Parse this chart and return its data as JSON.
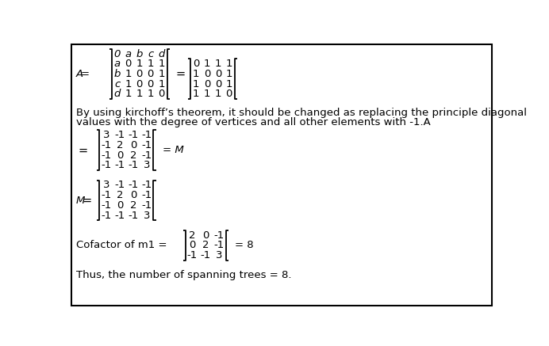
{
  "bg_color": "#ffffff",
  "border_color": "#000000",
  "text_color": "#000000",
  "figsize": [
    6.92,
    4.37
  ],
  "dpi": 100,
  "matrix_A_labeled": [
    [
      "0",
      "a",
      "b",
      "c",
      "d"
    ],
    [
      "a",
      "0",
      "1",
      "1",
      "1"
    ],
    [
      "b",
      "1",
      "0",
      "0",
      "1"
    ],
    [
      "c",
      "1",
      "0",
      "0",
      "1"
    ],
    [
      "d",
      "1",
      "1",
      "1",
      "0"
    ]
  ],
  "matrix_A": [
    [
      "0",
      "1",
      "1",
      "1"
    ],
    [
      "1",
      "0",
      "0",
      "1"
    ],
    [
      "1",
      "0",
      "0",
      "1"
    ],
    [
      "1",
      "1",
      "1",
      "0"
    ]
  ],
  "matrix_M": [
    [
      "3",
      "-1",
      "-1",
      "-1"
    ],
    [
      "-1",
      "2",
      "0",
      "-1"
    ],
    [
      "-1",
      "0",
      "2",
      "-1"
    ],
    [
      "-1",
      "-1",
      "-1",
      "3"
    ]
  ],
  "matrix_cofactor": [
    [
      "2",
      "0",
      "-1"
    ],
    [
      "0",
      "2",
      "-1"
    ],
    [
      "-1",
      "-1",
      "3"
    ]
  ],
  "explanation_line1": "By using kirchoff’s theorem, it should be changed as replacing the principle diagonal",
  "explanation_line2": "values with the degree of vertices and all other elements with -1.A",
  "final_text": "Thus, the number of spanning trees = 8.",
  "font_size": 9.5,
  "label_font_size": 9.5
}
